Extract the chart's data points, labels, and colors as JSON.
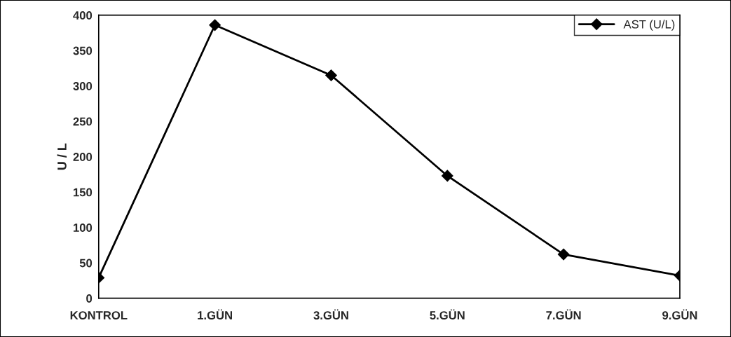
{
  "chart_data": {
    "type": "line",
    "ylabel": "U / L",
    "categories": [
      "KONTROL",
      "1.GÜN",
      "3.GÜN",
      "5.GÜN",
      "7.GÜN",
      "9.GÜN"
    ],
    "series": [
      {
        "name": "AST (U/L)",
        "color": "#000000",
        "values": [
          29,
          386,
          315,
          173,
          62,
          32
        ]
      }
    ],
    "ylim": [
      0,
      400
    ],
    "yticks": [
      0,
      50,
      100,
      150,
      200,
      250,
      300,
      350,
      400
    ],
    "grid": false,
    "legend": "top right",
    "marker": "diamond",
    "line_style": "solid"
  }
}
